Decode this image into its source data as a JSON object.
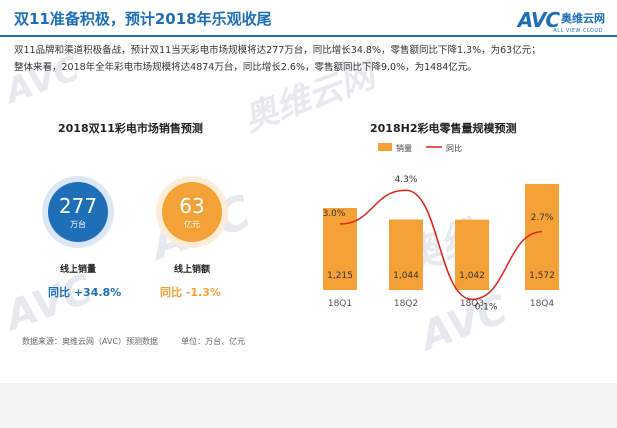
{
  "header": {
    "title": "双11准备积极，预计2018年乐观收尾",
    "logo_text": "AVC",
    "logo_cn": "奥维云网",
    "logo_sub": "ALL VIEW CLOUD"
  },
  "paragraph": {
    "line1": "双11品牌和渠道积极备战，预计双11当天彩电市场规模将达277万台，同比增长34.8%，零售额同比下降1.3%，为63亿元；",
    "line2": "整体来看，2018年全年彩电市场规模将达4874万台，同比增长2.6%，零售额同比下降9.0%，为1484亿元。"
  },
  "left_panel": {
    "title": "2018双11彩电市场销售预测",
    "volume": {
      "value": "277",
      "unit": "万台",
      "label": "线上销量",
      "yoy_label": "同比",
      "yoy_value": "+34.8%"
    },
    "revenue": {
      "value": "63",
      "unit": "亿元",
      "label": "线上销额",
      "yoy_label": "同比",
      "yoy_value": "-1.3%"
    }
  },
  "chart_data": {
    "type": "bar",
    "title": "2018H2彩电零售量规模预测",
    "categories": [
      "18Q1",
      "18Q2",
      "18Q3",
      "18Q4"
    ],
    "series": [
      {
        "name": "销量",
        "type": "bar",
        "values": [
          1215,
          1044,
          1042,
          1572
        ],
        "labels": [
          "1,215",
          "1,044",
          "1,042",
          "1,572"
        ]
      },
      {
        "name": "同比",
        "type": "line",
        "values": [
          3.0,
          4.3,
          0.1,
          2.7
        ],
        "labels": [
          "3.0%",
          "4.3%",
          "0.1%",
          "2.7%"
        ]
      }
    ],
    "legend": "top",
    "colors": {
      "bar": "#f4a238",
      "line": "#e0241c"
    }
  },
  "footer": {
    "source": "数据来源：奥维云网（AVC）预测数据",
    "unit": "单位：万台、亿元"
  },
  "colors": {
    "brand_blue": "#1f6fb8",
    "orange": "#f4a238",
    "positive": "#1f6fb8",
    "negative": "#f4a238"
  }
}
